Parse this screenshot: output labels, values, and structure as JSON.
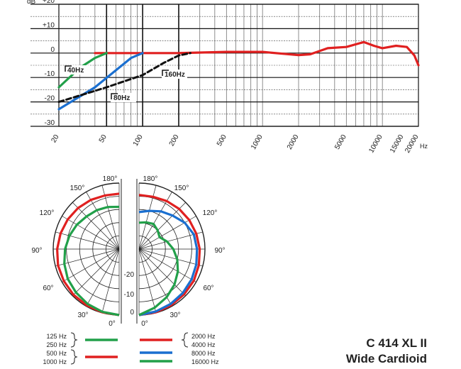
{
  "chart_data": [
    {
      "type": "line",
      "y_unit": "dB",
      "x_unit": "Hz",
      "ylim": [
        -30,
        20
      ],
      "y_ticks": [
        {
          "value": 20,
          "label": "+20"
        },
        {
          "value": 10,
          "label": "+10"
        },
        {
          "value": 0,
          "label": "0"
        },
        {
          "value": -10,
          "label": "-10"
        },
        {
          "value": -20,
          "label": "-20"
        },
        {
          "value": -30,
          "label": "-30"
        }
      ],
      "x_scale": "log",
      "xlim": [
        20,
        20000
      ],
      "x_ticks": [
        "20",
        "50",
        "100",
        "200",
        "500",
        "1000",
        "2000",
        "5000",
        "10000",
        "15000",
        "20000"
      ],
      "grid": true,
      "series": [
        {
          "color": "#e02020",
          "style": "solid",
          "points": [
            [
              40,
              0
            ],
            [
              100,
              0
            ],
            [
              200,
              0
            ],
            [
              500,
              0.5
            ],
            [
              1000,
              0.5
            ],
            [
              1500,
              -0.3
            ],
            [
              2000,
              -0.8
            ],
            [
              2500,
              -0.5
            ],
            [
              3500,
              2
            ],
            [
              5000,
              2.5
            ],
            [
              7000,
              4.5
            ],
            [
              8500,
              3
            ],
            [
              10000,
              2
            ],
            [
              13000,
              3
            ],
            [
              16000,
              2.5
            ],
            [
              18500,
              -1
            ],
            [
              20000,
              -5
            ]
          ]
        },
        {
          "color": "#22a04a",
          "style": "solid",
          "filter_label": "40Hz",
          "points": [
            [
              20,
              -14
            ],
            [
              30,
              -6
            ],
            [
              40,
              -2
            ],
            [
              50,
              0
            ]
          ]
        },
        {
          "color": "#1a6fd0",
          "style": "solid",
          "filter_label": "80Hz",
          "points": [
            [
              20,
              -23
            ],
            [
              40,
              -14
            ],
            [
              60,
              -7
            ],
            [
              80,
              -2
            ],
            [
              100,
              0
            ]
          ]
        },
        {
          "color": "#111111",
          "style": "dashed",
          "filter_label": "160Hz",
          "points": [
            [
              20,
              -20
            ],
            [
              50,
              -14
            ],
            [
              100,
              -9
            ],
            [
              150,
              -4
            ],
            [
              200,
              -1
            ],
            [
              250,
              0
            ]
          ]
        }
      ]
    },
    {
      "type": "polar",
      "angle_labels": [
        "0°",
        "30°",
        "60°",
        "90°",
        "120°",
        "150°",
        "180°"
      ],
      "radial_labels": [
        "0",
        "-10",
        "-20"
      ],
      "groups": [
        {
          "side": "left",
          "series": [
            {
              "frequency": "125 Hz",
              "color": "#e02020",
              "points": [
                [
                  0,
                  0
                ],
                [
                  15,
                  -0.2
                ],
                [
                  30,
                  -0.4
                ],
                [
                  45,
                  -0.5
                ],
                [
                  60,
                  -0.8
                ],
                [
                  75,
                  -1
                ],
                [
                  90,
                  -1.5
                ],
                [
                  105,
                  -2
                ],
                [
                  120,
                  -2.5
                ],
                [
                  135,
                  -3
                ],
                [
                  150,
                  -3.5
                ],
                [
                  165,
                  -4
                ],
                [
                  180,
                  -4
                ]
              ]
            },
            {
              "frequency": "250 Hz",
              "color": "#e02020",
              "points": []
            },
            {
              "frequency": "500 Hz",
              "color": "#1a6fd0",
              "points": []
            },
            {
              "frequency": "1000 Hz",
              "color": "#22a04a",
              "points": [
                [
                  0,
                  0
                ],
                [
                  15,
                  -0.4
                ],
                [
                  30,
                  -1
                ],
                [
                  45,
                  -1.8
                ],
                [
                  60,
                  -2.5
                ],
                [
                  75,
                  -3.5
                ],
                [
                  90,
                  -4.5
                ],
                [
                  105,
                  -5.5
                ],
                [
                  120,
                  -6.5
                ],
                [
                  135,
                  -7.5
                ],
                [
                  150,
                  -8
                ],
                [
                  165,
                  -8.5
                ],
                [
                  180,
                  -9
                ]
              ]
            }
          ]
        },
        {
          "side": "right",
          "series": [
            {
              "frequency": "2000 Hz",
              "color": "#e02020",
              "points": [
                [
                  0,
                  0
                ],
                [
                  15,
                  -0.2
                ],
                [
                  30,
                  -0.5
                ],
                [
                  45,
                  -0.8
                ],
                [
                  60,
                  -1
                ],
                [
                  75,
                  -1.5
                ],
                [
                  90,
                  -2
                ],
                [
                  105,
                  -2.5
                ],
                [
                  120,
                  -3
                ],
                [
                  135,
                  -3.5
                ],
                [
                  150,
                  -4
                ],
                [
                  165,
                  -4.5
                ],
                [
                  180,
                  -4.5
                ]
              ]
            },
            {
              "frequency": "4000 Hz",
              "color": "#e02020",
              "points": []
            },
            {
              "frequency": "8000 Hz",
              "color": "#1a6fd0",
              "points": [
                [
                  0,
                  0
                ],
                [
                  15,
                  -0.5
                ],
                [
                  30,
                  -1
                ],
                [
                  45,
                  -1.5
                ],
                [
                  60,
                  -2
                ],
                [
                  75,
                  -2.5
                ],
                [
                  90,
                  -3
                ],
                [
                  105,
                  -3.5
                ],
                [
                  120,
                  -5
                ],
                [
                  135,
                  -7
                ],
                [
                  150,
                  -8.5
                ],
                [
                  165,
                  -10
                ],
                [
                  180,
                  -11
                ]
              ]
            },
            {
              "frequency": "16000 Hz",
              "color": "#22a04a",
              "points": [
                [
                  0,
                  0
                ],
                [
                  15,
                  -2
                ],
                [
                  30,
                  -4
                ],
                [
                  45,
                  -6
                ],
                [
                  60,
                  -8
                ],
                [
                  75,
                  -10
                ],
                [
                  90,
                  -12
                ],
                [
                  105,
                  -14
                ],
                [
                  120,
                  -16
                ],
                [
                  135,
                  -15
                ],
                [
                  150,
                  -14
                ],
                [
                  165,
                  -14.5
                ],
                [
                  180,
                  -15
                ]
              ]
            }
          ]
        }
      ]
    }
  ],
  "legend": {
    "left": [
      "125 Hz",
      "250 Hz",
      "500 Hz",
      "1000 Hz"
    ],
    "right": [
      "2000 Hz",
      "4000 Hz",
      "8000 Hz",
      "16000 Hz"
    ]
  },
  "product": {
    "model": "C 414 XL II",
    "pattern": "Wide Cardioid"
  }
}
